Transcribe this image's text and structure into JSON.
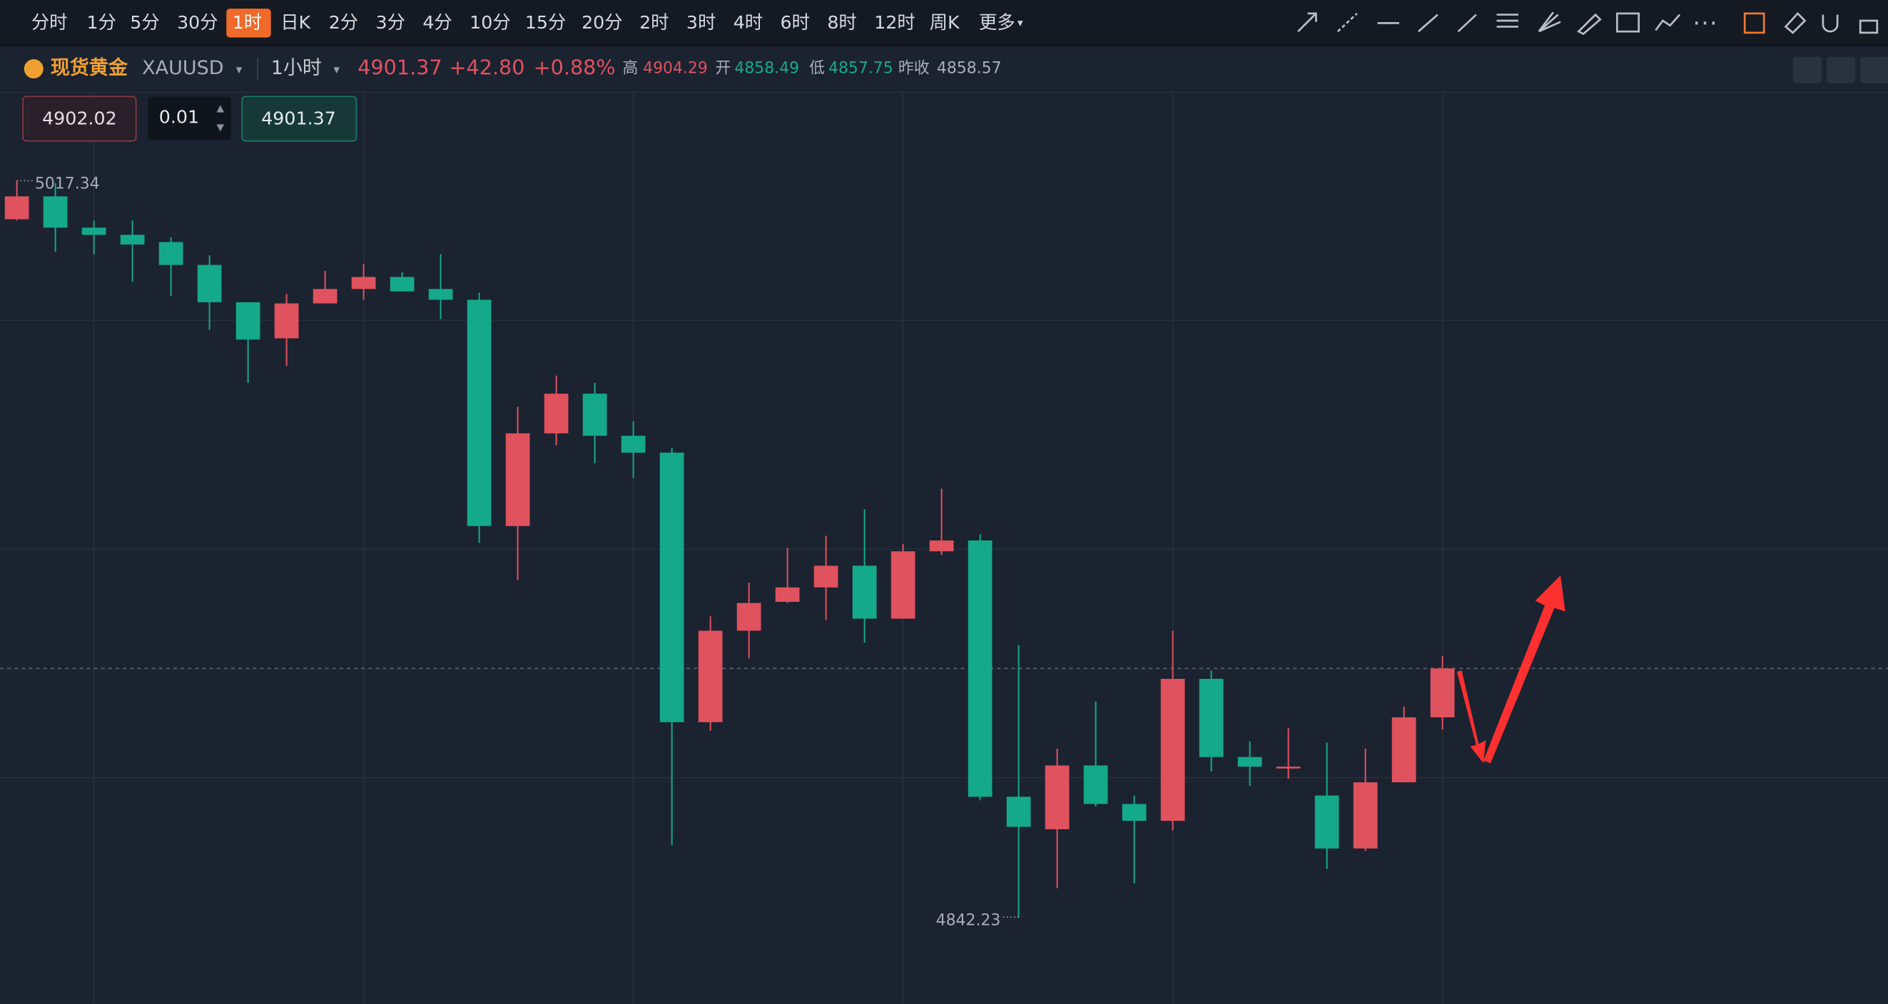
{
  "toolbar": {
    "items": [
      {
        "label": "分时"
      },
      {
        "label": "1分"
      },
      {
        "label": "5分"
      },
      {
        "label": "30分"
      },
      {
        "label": "1时",
        "active": true
      },
      {
        "label": "日K"
      },
      {
        "label": "2分"
      },
      {
        "label": "3分"
      },
      {
        "label": "4分"
      },
      {
        "label": "10分"
      },
      {
        "label": "15分"
      },
      {
        "label": "20分"
      },
      {
        "label": "2时"
      },
      {
        "label": "3时"
      },
      {
        "label": "4时"
      },
      {
        "label": "6时"
      },
      {
        "label": "8时"
      },
      {
        "label": "12时"
      },
      {
        "label": "周K"
      },
      {
        "label": "更多"
      }
    ]
  },
  "header": {
    "name": "现货黄金",
    "code": "XAUUSD",
    "period": "1小时",
    "price": "4901.37",
    "change": "+42.80",
    "change_pct": "+0.88%",
    "high_label": "高",
    "high": "4904.29",
    "open_label": "开",
    "open": "4858.49",
    "low_label": "低",
    "low": "4857.75",
    "prev_close_label": "昨收",
    "prev_close": "4858.57"
  },
  "order": {
    "sell_price": "4902.02",
    "quantity": "0.01",
    "buy_price": "4901.37"
  },
  "chart_data": {
    "type": "candlestick",
    "up_color": "#e0525e",
    "down_color": "#15a98b",
    "ylim": [
      4821.63,
      5038.51
    ],
    "open": [
      5008.18,
      5013.62,
      5006.18,
      5004.47,
      5002.75,
      4997.31,
      4988.44,
      4979.86,
      4988.16,
      4991.59,
      4994.45,
      4991.59,
      4989.02,
      4935.23,
      4957.26,
      4966.7,
      4956.69,
      4952.68,
      4888.59,
      4910.34,
      4917.2,
      4920.64,
      4925.79,
      4913.2,
      4929.22,
      4931.8,
      4870.86,
      4863.13,
      4878.3,
      4869.14,
      4865.13,
      4898.89,
      4880.3,
      4877.72,
      4871.14,
      4858.55,
      4874.29,
      4889.74
    ],
    "high": [
      5017.34,
      5016.77,
      5007.9,
      5007.9,
      5003.89,
      4999.6,
      4988.44,
      4990.45,
      4995.88,
      4997.6,
      4995.6,
      4999.89,
      4990.73,
      4963.55,
      4970.99,
      4969.28,
      4960.12,
      4953.83,
      4913.77,
      4921.78,
      4930.08,
      4932.94,
      4939.23,
      4930.94,
      4944.1,
      4933.23,
      4906.91,
      4882.3,
      4893.46,
      4871.14,
      4910.34,
      4900.9,
      4884.02,
      4887.16,
      4883.73,
      4882.3,
      4892.31,
      4904.33
    ],
    "low": [
      5007.9,
      5000.46,
      4999.89,
      4993.31,
      4989.87,
      4981.86,
      4969.28,
      4973.28,
      4988.16,
      4989.02,
      4991.02,
      4984.44,
      4931.22,
      4922.35,
      4954.4,
      4950.11,
      4946.67,
      4859.41,
      4886.59,
      4903.76,
      4916.92,
      4912.91,
      4907.48,
      4913.2,
      4928.36,
      4870.0,
      4842.23,
      4849.11,
      4868.57,
      4850.26,
      4862.85,
      4876.86,
      4873.43,
      4875.15,
      4853.69,
      4857.98,
      4874.29,
      4886.87
    ],
    "close": [
      5013.62,
      5006.18,
      5004.47,
      5002.18,
      4997.31,
      4988.44,
      4979.57,
      4988.16,
      4991.59,
      4994.45,
      4991.02,
      4989.02,
      4935.23,
      4957.26,
      4966.7,
      4956.69,
      4952.68,
      4888.59,
      4910.34,
      4916.92,
      4920.64,
      4925.79,
      4913.2,
      4929.22,
      4931.8,
      4870.86,
      4863.7,
      4878.3,
      4869.14,
      4865.13,
      4898.89,
      4880.3,
      4878.01,
      4878.01,
      4858.55,
      4874.29,
      4889.74,
      4901.37
    ],
    "max_mark": 5017.34,
    "min_mark": 4842.23,
    "last_price": 4901.37
  }
}
